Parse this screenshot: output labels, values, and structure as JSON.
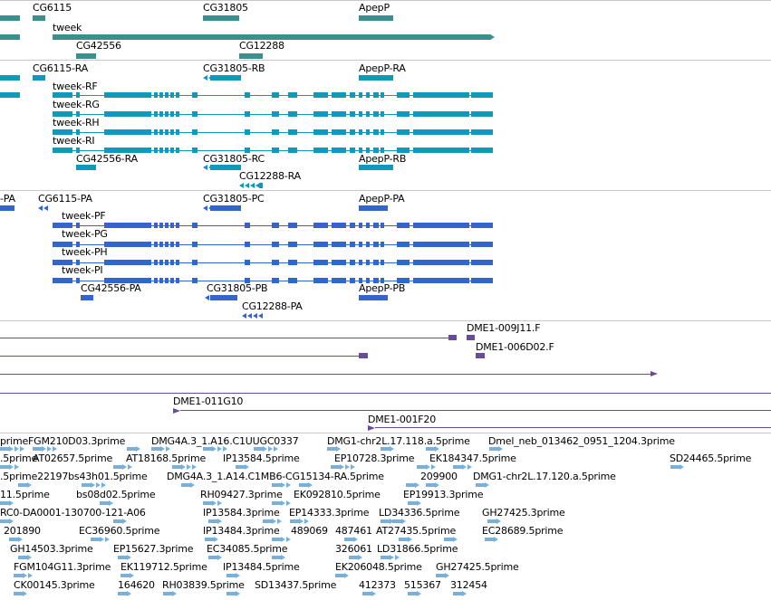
{
  "colors": {
    "gene": "#3a8f8f",
    "transcript": "#1199bb",
    "protein": "#3366cc",
    "clone": "#6a4a9c",
    "est": "#7ab0d8",
    "divider": "#c8c8c8"
  },
  "gene_track": {
    "labels": [
      "CG6115",
      "CG31805",
      "ApepP",
      "tweek",
      "CG42556",
      "CG12288"
    ]
  },
  "transcript_track": {
    "labels": [
      "CG6115-RA",
      "CG31805-RB",
      "ApepP-RA",
      "tweek-RF",
      "tweek-RG",
      "tweek-RH",
      "tweek-RI",
      "CG42556-RA",
      "CG31805-RC",
      "ApepP-RB",
      "CG12288-RA"
    ]
  },
  "protein_track": {
    "labels": [
      "-PA",
      "CG6115-PA",
      "CG31805-PC",
      "ApepP-PA",
      "tweek-PF",
      "tweek-PG",
      "tweek-PH",
      "tweek-PI",
      "CG42556-PA",
      "CG31805-PB",
      "ApepP-PB",
      "CG12288-PA"
    ]
  },
  "clone_track": {
    "labels": [
      "DME1-009J11.F",
      "DME1-006D02.F",
      "DME1-011G10",
      "DME1-001F20"
    ]
  },
  "est_track": {
    "labels": [
      "primeFGM210D03.3prime",
      "DMG4A.3_1.A16.C1UUGC0337",
      "DMG1-chr2L.17.118.a.5prime",
      "Dmel_neb_013462_0951_1204.3prime",
      ".5prime",
      "AT02657.5prime",
      "AT18168.5prime",
      "IP13584.5prime",
      "EP10728.3prime",
      "EK184347.5prime",
      ".5prime22197bs43h01.5prime",
      "DMG4A.3_1.A14.C1MB6-CG15134-RA.5prime",
      "209900",
      "DMG1-chr2L.17.120.a.5prime",
      "SD24465.5prime",
      "11.5prime",
      "bs08d02.5prime",
      "RH09427.3prime",
      "EK092810.5prime",
      "EP19913.3prime",
      "RC0-DA0001-130700-121-A06",
      "IP13584.3prime",
      "EP14333.3prime",
      "LD34336.5prime",
      "GH27425.3prime",
      "201890",
      "EC36960.5prime",
      "IP13484.3prime",
      "489069",
      "487461",
      "AT27435.5prime",
      "EC28689.5prime",
      "GH14503.3prime",
      "EP15627.3prime",
      "EC34085.5prime",
      "326061",
      "LD31866.5prime",
      "FGM104G11.3prime",
      "EK119712.5prime",
      "IP13484.5prime",
      "EK206048.5prime",
      "GH27425.5prime",
      "CK00145.3prime",
      "164620",
      "RH03839.5prime",
      "SD13437.5prime",
      "412373",
      "515367",
      "312454"
    ]
  }
}
